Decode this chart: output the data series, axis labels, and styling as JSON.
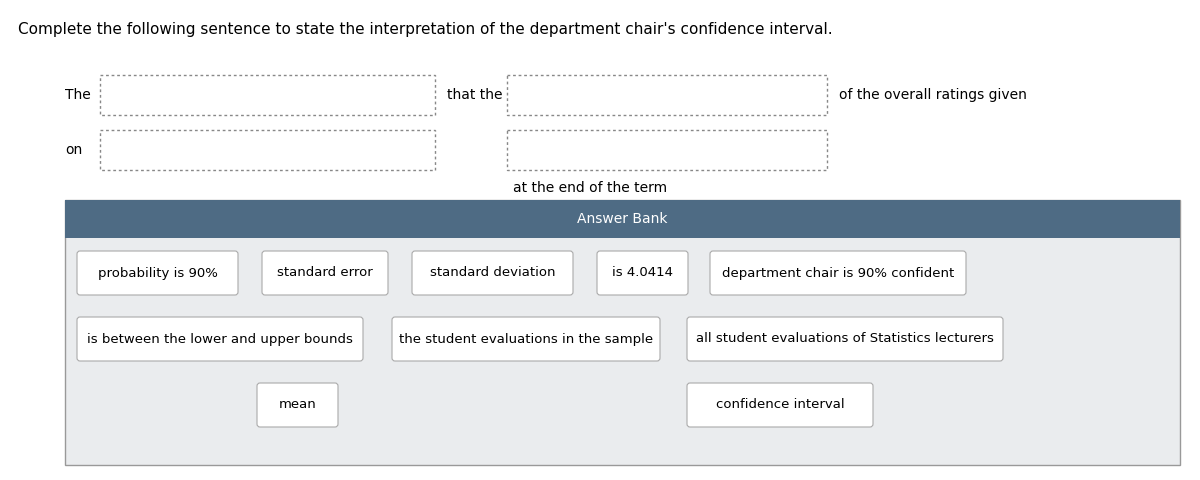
{
  "title": "Complete the following sentence to state the interpretation of the department chair's confidence interval.",
  "at_end": "at the end of the term",
  "answer_bank_title": "Answer Bank",
  "answer_bank_header_color": "#4e6b84",
  "answer_bank_bg_color": "#eaecee",
  "answer_bank_border_color": "#999999",
  "answer_items_row1": [
    "probability is 90%",
    "standard error",
    "standard deviation",
    "is 4.0414",
    "department chair is 90% confident"
  ],
  "answer_items_row2": [
    "is between the lower and upper bounds",
    "the student evaluations in the sample",
    "all student evaluations of Statistics lecturers"
  ],
  "answer_items_row3": [
    "mean",
    "confidence interval"
  ],
  "font_size": 10,
  "title_font_size": 11
}
